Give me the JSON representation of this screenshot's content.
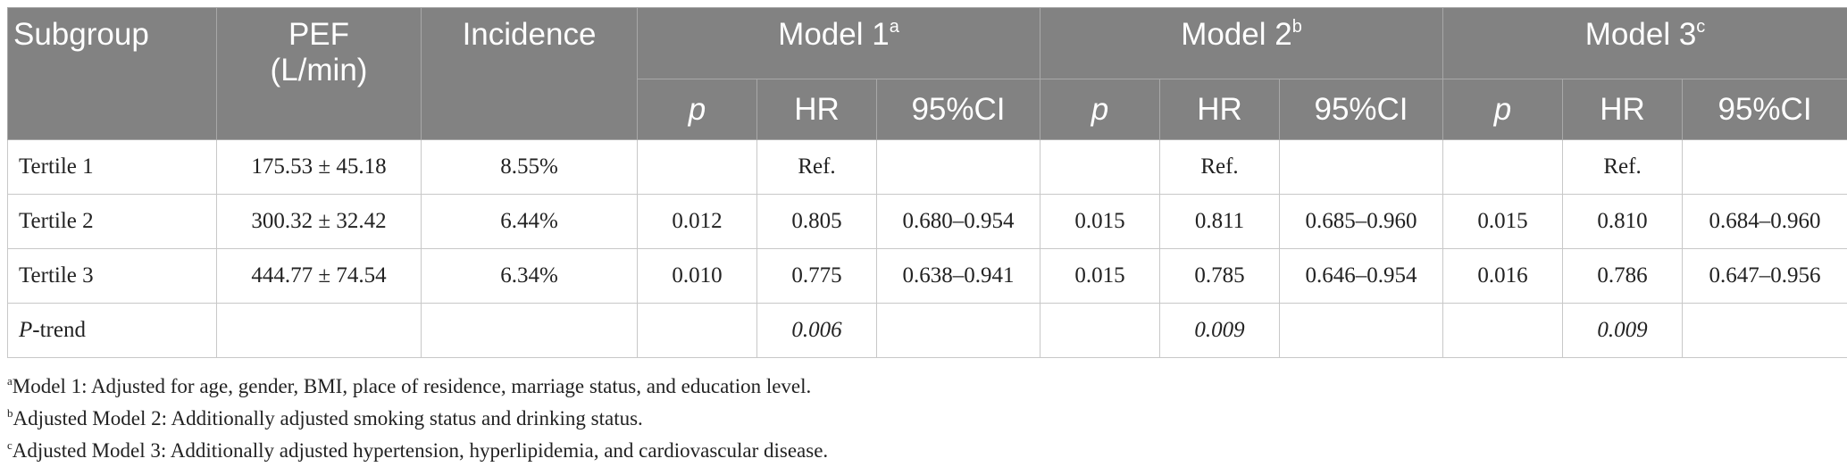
{
  "table": {
    "header_row1": {
      "subgroup": "Subgroup",
      "pef_line1": "PEF",
      "pef_line2": "(L/min)",
      "incidence": "Incidence",
      "model1": "Model 1",
      "model1_mark": "a",
      "model2": "Model 2",
      "model2_mark": "b",
      "model3": "Model 3",
      "model3_mark": "c"
    },
    "header_row2": [
      "p",
      "HR",
      "95%CI",
      "p",
      "HR",
      "95%CI",
      "p",
      "HR",
      "95%CI"
    ],
    "rows": [
      {
        "subgroup": "Tertile 1",
        "pef": "175.53 ± 45.18",
        "incidence": "8.55%",
        "m1_p": "",
        "m1_hr": "Ref.",
        "m1_ci": "",
        "m2_p": "",
        "m2_hr": "Ref.",
        "m2_ci": "",
        "m3_p": "",
        "m3_hr": "Ref.",
        "m3_ci": ""
      },
      {
        "subgroup": "Tertile 2",
        "pef": "300.32 ± 32.42",
        "incidence": "6.44%",
        "m1_p": "0.012",
        "m1_hr": "0.805",
        "m1_ci": "0.680–0.954",
        "m2_p": "0.015",
        "m2_hr": "0.811",
        "m2_ci": "0.685–0.960",
        "m3_p": "0.015",
        "m3_hr": "0.810",
        "m3_ci": "0.684–0.960"
      },
      {
        "subgroup": "Tertile 3",
        "pef": "444.77 ± 74.54",
        "incidence": "6.34%",
        "m1_p": "0.010",
        "m1_hr": "0.775",
        "m1_ci": "0.638–0.941",
        "m2_p": "0.015",
        "m2_hr": "0.785",
        "m2_ci": "0.646–0.954",
        "m3_p": "0.016",
        "m3_hr": "0.786",
        "m3_ci": "0.647–0.956"
      }
    ],
    "ptrend": {
      "label_italic": "P",
      "label_rest": "-trend",
      "m1_hr": "0.006",
      "m2_hr": "0.009",
      "m3_hr": "0.009"
    }
  },
  "footnotes": [
    {
      "mark": "a",
      "text": "Model 1: Adjusted for age, gender, BMI, place of residence, marriage status, and education level."
    },
    {
      "mark": "b",
      "text": "Adjusted Model 2: Additionally adjusted smoking status and drinking status."
    },
    {
      "mark": "c",
      "text": "Adjusted Model 3: Additionally adjusted hypertension, hyperlipidemia, and cardiovascular disease."
    }
  ]
}
